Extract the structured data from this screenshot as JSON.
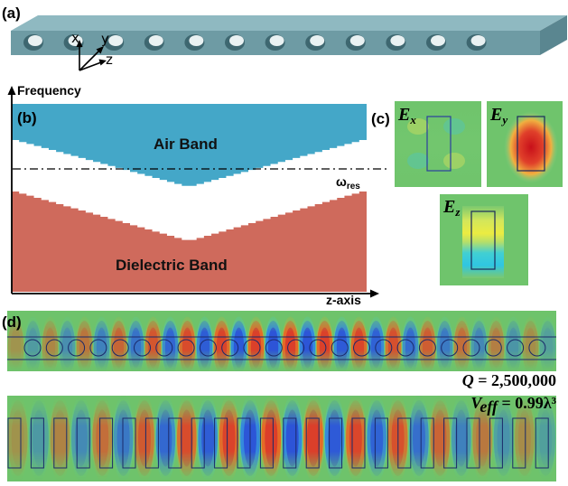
{
  "panels": {
    "a": "(a)",
    "b": "(b)",
    "c": "(c)",
    "d": "(d)"
  },
  "waveguide": {
    "hole_count": 12,
    "axes": {
      "x": "x",
      "y": "y",
      "z": "z"
    },
    "colors": {
      "top": "#8fb9c1",
      "front": "#6e9ba4",
      "side": "#5a8690",
      "hole": "#3e6770"
    }
  },
  "band_diagram": {
    "y_axis_label": "Frequency",
    "x_axis_label": "z-axis",
    "air_band_label": "Air Band",
    "dielectric_band_label": "Dielectric Band",
    "resonance_label": "ω",
    "resonance_sub": "res",
    "colors": {
      "air": "#44a7c8",
      "dielectric": "#cf6a5c"
    }
  },
  "field_maps": [
    {
      "symbol": "E",
      "sub": "x"
    },
    {
      "symbol": "E",
      "sub": "y"
    },
    {
      "symbol": "E",
      "sub": "z"
    }
  ],
  "mode_profile": {
    "q_symbol": "Q",
    "q_value": " = 2,500,000",
    "v_symbol": "V",
    "v_sub": "eff",
    "v_value": " = 0.99λ³",
    "colors": {
      "background": "#6ec36b",
      "positive": "#d93a2b",
      "negative": "#2c4fd6"
    }
  }
}
